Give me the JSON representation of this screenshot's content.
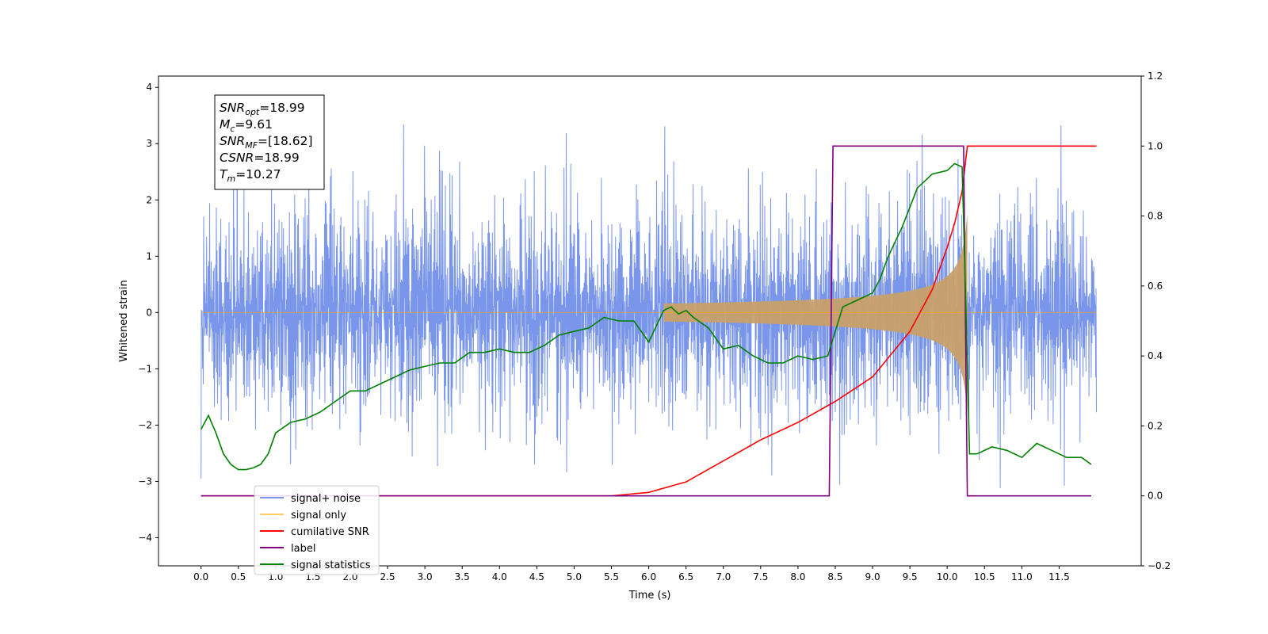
{
  "chart_data": {
    "type": "line",
    "xlabel": "Time (s)",
    "ylabel": "Whitened strain",
    "xlim": [
      -0.57,
      12.6
    ],
    "ylim": [
      -4.5,
      4.2
    ],
    "y2lim": [
      -0.2,
      1.2
    ],
    "x_ticks": [
      "0.0",
      "0.5",
      "1.0",
      "1.5",
      "2.0",
      "2.5",
      "3.0",
      "3.5",
      "4.0",
      "4.5",
      "5.0",
      "5.5",
      "6.0",
      "6.5",
      "7.0",
      "7.5",
      "8.0",
      "8.5",
      "9.0",
      "9.5",
      "10.0",
      "10.5",
      "11.0",
      "11.5"
    ],
    "y_ticks": [
      "4",
      "3",
      "2",
      "1",
      "0",
      "−1",
      "−2",
      "−3",
      "−4"
    ],
    "y2_ticks": [
      "1.2",
      "1.0",
      "0.8",
      "0.6",
      "0.4",
      "0.2",
      "0.0",
      "−0.2"
    ],
    "grid": false,
    "legend_position": "lower-left",
    "annotation_box": {
      "lines": [
        {
          "sym": "SNR",
          "sub": "opt",
          "val": "=18.99"
        },
        {
          "sym": "M",
          "sub": "c",
          "val": "=9.61"
        },
        {
          "sym": "SNR",
          "sub": "MF",
          "val": "=[18.62]"
        },
        {
          "sym": "CSNR",
          "sub": "",
          "val": "=18.99"
        },
        {
          "sym": "T",
          "sub": "m",
          "val": "=10.27"
        }
      ]
    },
    "series": [
      {
        "name": "signal+ noise",
        "color": "#4169e1",
        "axis": "left",
        "description_values": {
          "x_range": [
            0.0,
            12.0
          ],
          "amplitude_std": 1.0,
          "peak_max": 3.8,
          "peak_min": -4.1
        }
      },
      {
        "name": "signal only",
        "color": "#ffa500",
        "axis": "left",
        "chirp": {
          "start": 0.0,
          "end": 10.27,
          "final_amplitude": 2.7
        }
      },
      {
        "name": "cumilative SNR",
        "color": "#ff0000",
        "axis": "right",
        "x": [
          0.0,
          5.5,
          6.0,
          6.5,
          7.0,
          7.5,
          8.0,
          8.5,
          9.0,
          9.5,
          9.8,
          10.0,
          10.1,
          10.2,
          10.27,
          12.0
        ],
        "y": [
          0.0,
          0.0,
          0.01,
          0.04,
          0.1,
          0.16,
          0.21,
          0.27,
          0.34,
          0.47,
          0.59,
          0.71,
          0.78,
          0.87,
          1.0,
          1.0
        ]
      },
      {
        "name": "label",
        "color": "#800080",
        "axis": "right",
        "x": [
          0.0,
          8.42,
          8.47,
          10.22,
          10.27,
          11.93
        ],
        "y": [
          0.0,
          0.0,
          1.0,
          1.0,
          0.0,
          0.0
        ]
      },
      {
        "name": "signal statistics",
        "color": "#008000",
        "axis": "right",
        "x": [
          0.0,
          0.1,
          0.2,
          0.3,
          0.4,
          0.5,
          0.6,
          0.7,
          0.8,
          0.9,
          1.0,
          1.2,
          1.4,
          1.6,
          1.8,
          2.0,
          2.2,
          2.4,
          2.6,
          2.8,
          3.0,
          3.2,
          3.4,
          3.6,
          3.8,
          4.0,
          4.2,
          4.4,
          4.6,
          4.8,
          5.0,
          5.2,
          5.4,
          5.6,
          5.8,
          6.0,
          6.2,
          6.3,
          6.4,
          6.5,
          6.6,
          6.8,
          7.0,
          7.2,
          7.4,
          7.6,
          7.8,
          8.0,
          8.2,
          8.4,
          8.5,
          8.6,
          8.8,
          9.0,
          9.1,
          9.2,
          9.4,
          9.6,
          9.8,
          10.0,
          10.1,
          10.2,
          10.25,
          10.3,
          10.4,
          10.6,
          10.8,
          11.0,
          11.2,
          11.4,
          11.6,
          11.8,
          11.93
        ],
        "y": [
          0.19,
          0.23,
          0.18,
          0.12,
          0.09,
          0.075,
          0.075,
          0.08,
          0.09,
          0.12,
          0.18,
          0.21,
          0.22,
          0.24,
          0.27,
          0.3,
          0.3,
          0.32,
          0.34,
          0.36,
          0.37,
          0.38,
          0.38,
          0.41,
          0.41,
          0.42,
          0.41,
          0.41,
          0.43,
          0.46,
          0.47,
          0.48,
          0.51,
          0.5,
          0.5,
          0.44,
          0.53,
          0.54,
          0.52,
          0.53,
          0.51,
          0.48,
          0.42,
          0.43,
          0.4,
          0.38,
          0.38,
          0.4,
          0.39,
          0.4,
          0.47,
          0.54,
          0.56,
          0.58,
          0.62,
          0.68,
          0.77,
          0.88,
          0.92,
          0.93,
          0.95,
          0.94,
          0.55,
          0.12,
          0.12,
          0.14,
          0.13,
          0.11,
          0.15,
          0.13,
          0.11,
          0.11,
          0.09
        ]
      }
    ]
  }
}
